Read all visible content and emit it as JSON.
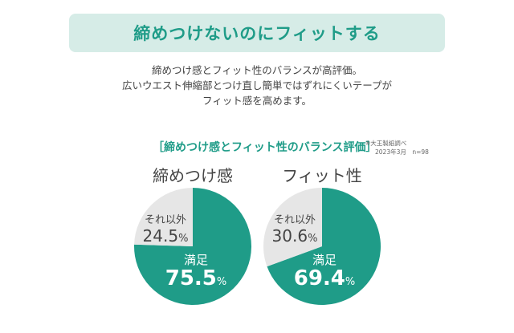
{
  "banner": {
    "title": "締めつけないのにフィットする"
  },
  "description": [
    "締めつけ感とフィット性のバランスが高評価。",
    "広いウエスト伸縮部とつけ直し簡単ではずれにくいテープが",
    "フィット感を高めます。"
  ],
  "section_title": "［締めつけ感とフィット性のバランス評価］",
  "note": {
    "line1": "※大王製紙調べ",
    "line2": "2023年3月　n=98"
  },
  "colors": {
    "accent": "#1f9c88",
    "other": "#e6e6e6",
    "banner_bg": "#d6ece7"
  },
  "chart_data": [
    {
      "type": "pie",
      "title": "締めつけ感",
      "slices": [
        {
          "label": "満足",
          "value": 75.5,
          "unit": "%",
          "color": "#1f9c88"
        },
        {
          "label": "それ以外",
          "value": 24.5,
          "unit": "%",
          "color": "#e6e6e6"
        }
      ]
    },
    {
      "type": "pie",
      "title": "フィット性",
      "slices": [
        {
          "label": "満足",
          "value": 69.4,
          "unit": "%",
          "color": "#1f9c88"
        },
        {
          "label": "それ以外",
          "value": 30.6,
          "unit": "%",
          "color": "#e6e6e6"
        }
      ]
    }
  ]
}
